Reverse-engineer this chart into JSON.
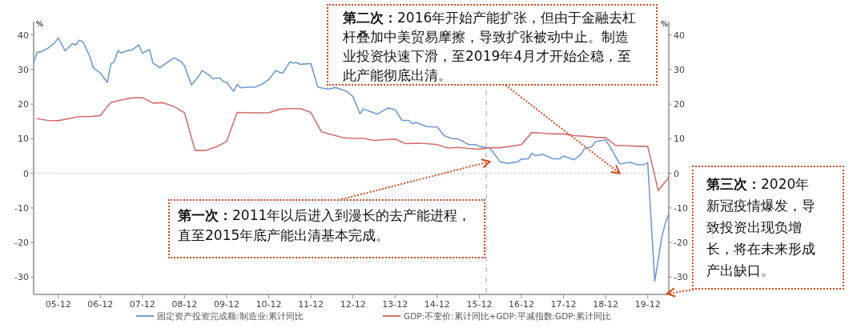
{
  "chart_data": {
    "type": "line",
    "ylabel": "%",
    "y2label": "%",
    "xlim": [
      "2005-05",
      "2020-06"
    ],
    "xticks": [
      {
        "value": "2005-12",
        "label": "05-12"
      },
      {
        "value": "2006-12",
        "label": "06-12"
      },
      {
        "value": "2007-12",
        "label": "07-12"
      },
      {
        "value": "2008-12",
        "label": "08-12"
      },
      {
        "value": "2009-12",
        "label": "09-12"
      },
      {
        "value": "2010-12",
        "label": "10-12"
      },
      {
        "value": "2011-12",
        "label": "11-12"
      },
      {
        "value": "2012-12",
        "label": "12-12"
      },
      {
        "value": "2013-12",
        "label": "13-12"
      },
      {
        "value": "2014-12",
        "label": "14-12"
      },
      {
        "value": "2015-12",
        "label": "15-12"
      },
      {
        "value": "2016-12",
        "label": "16-12"
      },
      {
        "value": "2017-12",
        "label": "17-12"
      },
      {
        "value": "2018-12",
        "label": "18-12"
      },
      {
        "value": "2019-12",
        "label": "19-12"
      }
    ],
    "ylim": [
      -35,
      42
    ],
    "yticks": [
      -30,
      -20,
      -10,
      0,
      10,
      20,
      30,
      40
    ],
    "y2lim": [
      -35,
      42
    ],
    "y2ticks": [
      -30,
      -20,
      -10,
      0,
      10,
      20,
      30,
      40
    ],
    "grid": false,
    "legend": "bottom",
    "marker": "none",
    "line_style": "solid",
    "series": [
      {
        "name": "固定资产投资完成额:制造业:累计同比",
        "color": "#6f9bd6",
        "x": [
          "2005-05",
          "2005-06",
          "2005-07",
          "2005-09",
          "2005-11",
          "2005-12",
          "2006-02",
          "2006-04",
          "2006-05",
          "2006-06",
          "2006-07",
          "2006-09",
          "2006-10",
          "2006-12",
          "2007-02",
          "2007-03",
          "2007-04",
          "2007-05",
          "2007-06",
          "2007-08",
          "2007-09",
          "2007-11",
          "2007-12",
          "2008-02",
          "2008-03",
          "2008-05",
          "2008-07",
          "2008-09",
          "2008-11",
          "2008-12",
          "2009-02",
          "2009-04",
          "2009-05",
          "2009-07",
          "2009-08",
          "2009-10",
          "2009-11",
          "2009-12",
          "2010-02",
          "2010-03",
          "2010-04",
          "2010-06",
          "2010-08",
          "2010-10",
          "2010-12",
          "2011-02",
          "2011-03",
          "2011-04",
          "2011-06",
          "2011-07",
          "2011-08",
          "2011-09",
          "2011-12",
          "2012-02",
          "2012-05",
          "2012-07",
          "2012-10",
          "2012-12",
          "2013-02",
          "2013-03",
          "2013-07",
          "2013-10",
          "2013-12",
          "2014-02",
          "2014-04",
          "2014-05",
          "2014-06",
          "2014-09",
          "2014-12",
          "2015-02",
          "2015-04",
          "2015-06",
          "2015-09",
          "2015-11",
          "2015-12",
          "2016-03",
          "2016-04",
          "2016-06",
          "2016-08",
          "2016-11",
          "2016-12",
          "2017-02",
          "2017-03",
          "2017-04",
          "2017-06",
          "2017-09",
          "2017-11",
          "2017-12",
          "2018-03",
          "2018-05",
          "2018-06",
          "2018-08",
          "2018-09",
          "2018-12",
          "2019-02",
          "2019-04",
          "2019-07",
          "2019-09",
          "2019-11",
          "2019-12",
          "2020-02",
          "2020-03",
          "2020-04",
          "2020-05",
          "2020-06"
        ],
        "values": [
          31.9,
          35.0,
          35.1,
          36.1,
          37.7,
          39.1,
          35.4,
          37.5,
          37.1,
          38.5,
          38.1,
          33.8,
          30.5,
          29.0,
          26.3,
          31.5,
          32.3,
          35.4,
          34.8,
          35.6,
          35.6,
          37.1,
          34.7,
          35.8,
          31.9,
          30.5,
          32.0,
          33.4,
          32.3,
          31.1,
          25.5,
          28.0,
          29.7,
          28.4,
          27.3,
          27.6,
          26.6,
          26.3,
          23.7,
          25.7,
          24.7,
          24.9,
          24.9,
          25.7,
          27.1,
          29.7,
          29.2,
          29.0,
          32.2,
          31.9,
          32.0,
          31.5,
          31.7,
          24.9,
          24.3,
          24.8,
          23.8,
          22.2,
          17.2,
          18.6,
          17.1,
          18.9,
          18.4,
          15.3,
          15.3,
          14.3,
          14.7,
          13.5,
          13.4,
          10.9,
          10.1,
          9.9,
          8.3,
          8.3,
          7.8,
          7.2,
          6.0,
          3.3,
          2.9,
          3.3,
          4.1,
          4.2,
          5.8,
          5.1,
          5.5,
          4.2,
          4.2,
          5.0,
          3.9,
          5.5,
          7.2,
          7.6,
          9.1,
          9.7,
          6.4,
          2.7,
          3.2,
          2.5,
          2.5,
          3.1,
          -31.2,
          -25.0,
          -18.5,
          -14.5,
          -11.7
        ]
      },
      {
        "name": "GDP:不变价:累计同比+GDP:平减指数:GDP:累计同比",
        "color": "#d4706e",
        "x": [
          "2005-06",
          "2005-09",
          "2005-12",
          "2006-06",
          "2006-09",
          "2006-12",
          "2007-03",
          "2007-06",
          "2007-09",
          "2007-12",
          "2008-03",
          "2008-06",
          "2008-09",
          "2008-12",
          "2009-03",
          "2009-06",
          "2009-09",
          "2009-12",
          "2010-03",
          "2010-06",
          "2010-09",
          "2010-12",
          "2011-03",
          "2011-06",
          "2011-09",
          "2011-12",
          "2012-03",
          "2012-06",
          "2012-09",
          "2012-12",
          "2013-03",
          "2013-06",
          "2013-12",
          "2014-03",
          "2014-06",
          "2014-09",
          "2014-12",
          "2015-03",
          "2015-06",
          "2015-09",
          "2015-12",
          "2016-03",
          "2016-06",
          "2016-09",
          "2016-12",
          "2017-03",
          "2017-06",
          "2017-09",
          "2017-12",
          "2018-03",
          "2018-06",
          "2018-09",
          "2018-12",
          "2019-03",
          "2019-06",
          "2019-09",
          "2019-12",
          "2020-03",
          "2020-06"
        ],
        "values": [
          15.8,
          15.3,
          15.2,
          16.4,
          16.4,
          16.7,
          20.5,
          21.2,
          21.8,
          21.9,
          20.3,
          20.4,
          19.3,
          17.5,
          6.6,
          6.6,
          7.6,
          9.2,
          17.6,
          17.5,
          17.5,
          17.5,
          18.5,
          18.7,
          18.7,
          17.6,
          12.0,
          11.2,
          10.3,
          10.1,
          10.1,
          9.5,
          9.9,
          8.6,
          8.7,
          8.6,
          8.3,
          7.3,
          7.5,
          7.2,
          7.0,
          7.4,
          7.4,
          7.8,
          8.3,
          11.8,
          11.6,
          11.4,
          11.4,
          10.9,
          10.7,
          10.4,
          10.3,
          8.0,
          8.0,
          7.8,
          7.8,
          -5.0,
          -1.2
        ]
      }
    ],
    "ref_lines": [
      {
        "axis": "y",
        "value": 0,
        "color": "#c8c8c8",
        "line_style": "dotted"
      },
      {
        "axis": "x",
        "value": "2016-02",
        "color": "#b0b0b0",
        "line_style": "dashed"
      }
    ],
    "annotations": [
      {
        "text": "第一次：2011年以后进入到漫长的去产能进程，直至2015年底产能出清基本完成。",
        "x": "2016-03",
        "y": 3.4
      },
      {
        "text": "第二次：2016年开始产能扩张，但由于金融去杠杆叠加中美贸易摩擦，导致扩张被动中止。制造业投资快速下滑，至2019年4月才开始企稳，至此产能彻底出清。",
        "x": "2019-04",
        "y": 0
      },
      "第三次：2020年新冠疫情爆发，导致投资出现负增长，将在未来形成产出缺口。"
    ]
  }
}
